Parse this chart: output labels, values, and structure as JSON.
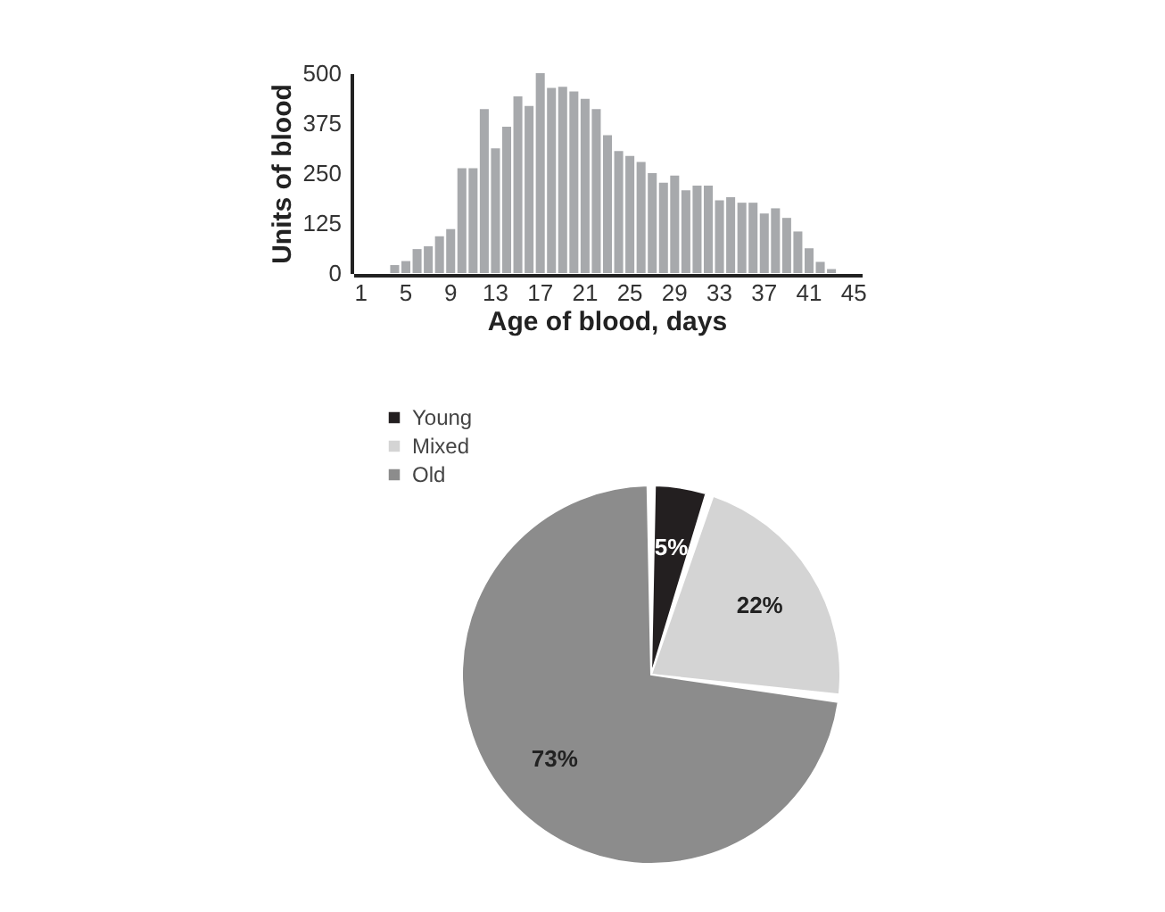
{
  "chart_data": [
    {
      "type": "bar",
      "xlabel": "Age of blood, days",
      "ylabel": "Units of blood",
      "categories": [
        "1",
        null,
        null,
        null,
        "5",
        null,
        null,
        null,
        "9",
        null,
        null,
        null,
        "13",
        null,
        null,
        null,
        "17",
        null,
        null,
        null,
        "21",
        null,
        null,
        null,
        "25",
        null,
        null,
        null,
        "29",
        null,
        null,
        null,
        "33",
        null,
        null,
        null,
        "37",
        null,
        null,
        null,
        "41",
        null,
        null,
        null,
        "45"
      ],
      "values": [
        null,
        null,
        null,
        20,
        30,
        60,
        67,
        92,
        110,
        262,
        262,
        410,
        312,
        366,
        442,
        418,
        500,
        463,
        466,
        454,
        436,
        410,
        345,
        305,
        293,
        278,
        250,
        226,
        244,
        207,
        219,
        219,
        182,
        190,
        176,
        176,
        149,
        162,
        138,
        104,
        62,
        28,
        10,
        null,
        null
      ],
      "color": "#a7a9ac",
      "ylim": [
        0,
        500
      ],
      "yticks": [
        0,
        125,
        250,
        375,
        500
      ],
      "grid": false
    },
    {
      "type": "pie",
      "categories": [
        "Young",
        "Mixed",
        "Old"
      ],
      "values": [
        5,
        22,
        73
      ],
      "colors": [
        "#231f20",
        "#d4d4d4",
        "#8c8c8c"
      ],
      "value_labels": [
        "5%",
        "22%",
        "73%"
      ],
      "legend": "top left"
    }
  ]
}
